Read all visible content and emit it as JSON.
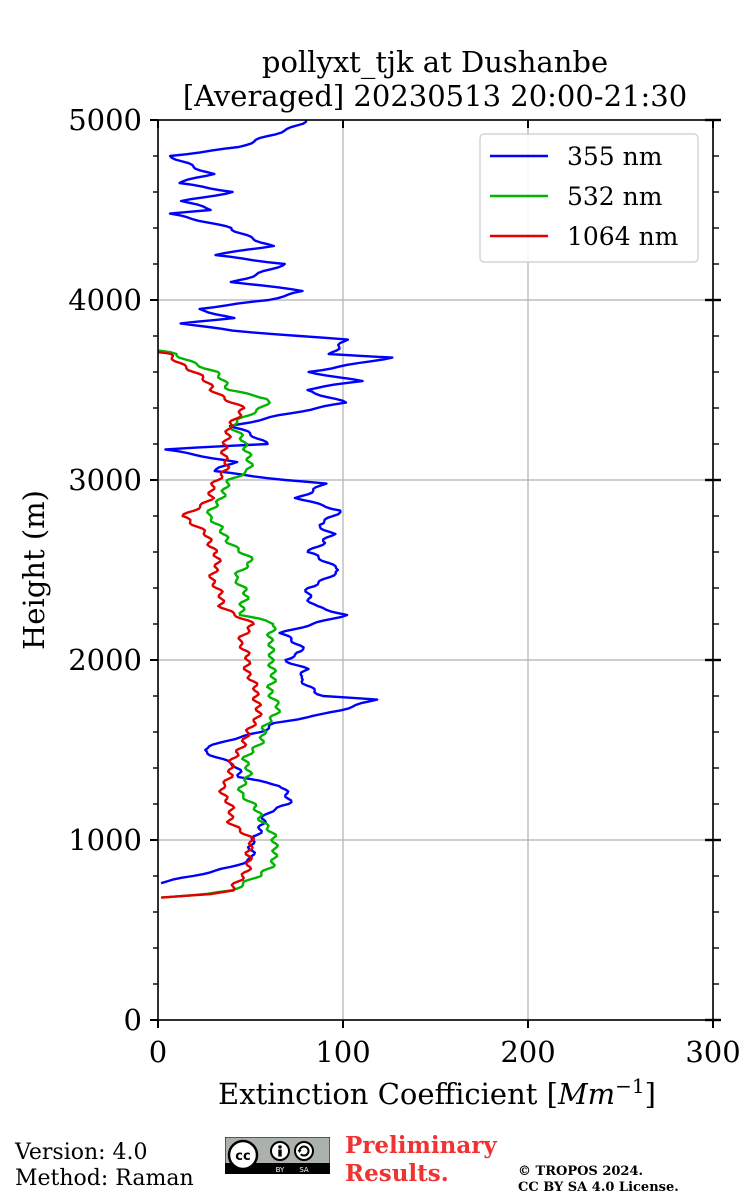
{
  "chart_data": {
    "type": "line",
    "title": "pollyxt_tjk at Dushanbe",
    "subtitle": "[Averaged] 20230513 20:00-21:30",
    "xlabel": "Extinction Coefficient [$Mm^{-1}$]",
    "xlabel_main": "Extinction Coefficient [",
    "xlabel_unit": "Mm",
    "xlabel_exp": "−1",
    "xlabel_close": "]",
    "ylabel": "Height (m)",
    "xlim": [
      0,
      300
    ],
    "ylim": [
      0,
      5000
    ],
    "xticks": [
      "0",
      "100",
      "200",
      "300"
    ],
    "yticks": [
      "0",
      "1000",
      "2000",
      "3000",
      "4000",
      "5000"
    ],
    "grid": true,
    "legend_position": "top-right",
    "series": [
      {
        "name": "355 nm",
        "color": "#0000ff",
        "points": [
          [
            0,
            760
          ],
          [
            20,
            800
          ],
          [
            40,
            850
          ],
          [
            50,
            900
          ],
          [
            52,
            1000
          ],
          [
            55,
            1080
          ],
          [
            60,
            1150
          ],
          [
            70,
            1200
          ],
          [
            68,
            1300
          ],
          [
            45,
            1350
          ],
          [
            40,
            1420
          ],
          [
            25,
            1500
          ],
          [
            35,
            1550
          ],
          [
            55,
            1600
          ],
          [
            65,
            1650
          ],
          [
            90,
            1700
          ],
          [
            117,
            1780
          ],
          [
            90,
            1800
          ],
          [
            75,
            1900
          ],
          [
            80,
            1950
          ],
          [
            70,
            2000
          ],
          [
            78,
            2050
          ],
          [
            68,
            2150
          ],
          [
            100,
            2250
          ],
          [
            85,
            2300
          ],
          [
            80,
            2400
          ],
          [
            100,
            2500
          ],
          [
            80,
            2600
          ],
          [
            90,
            2650
          ],
          [
            95,
            2700
          ],
          [
            85,
            2750
          ],
          [
            100,
            2830
          ],
          [
            75,
            2900
          ],
          [
            90,
            2980
          ],
          [
            70,
            3000
          ],
          [
            30,
            3050
          ],
          [
            40,
            3100
          ],
          [
            5,
            3170
          ],
          [
            60,
            3200
          ],
          [
            40,
            3300
          ],
          [
            100,
            3430
          ],
          [
            80,
            3500
          ],
          [
            110,
            3550
          ],
          [
            80,
            3600
          ],
          [
            127,
            3680
          ],
          [
            95,
            3700
          ],
          [
            100,
            3780
          ],
          [
            40,
            3830
          ],
          [
            15,
            3870
          ],
          [
            40,
            3900
          ],
          [
            20,
            3950
          ],
          [
            60,
            4000
          ],
          [
            80,
            4050
          ],
          [
            40,
            4100
          ],
          [
            70,
            4200
          ],
          [
            30,
            4250
          ],
          [
            60,
            4300
          ],
          [
            40,
            4400
          ],
          [
            5,
            4480
          ],
          [
            30,
            4500
          ],
          [
            15,
            4550
          ],
          [
            40,
            4600
          ],
          [
            10,
            4650
          ],
          [
            30,
            4700
          ],
          [
            5,
            4800
          ],
          [
            45,
            4850
          ],
          [
            70,
            4950
          ],
          [
            80,
            5000
          ]
        ]
      },
      {
        "name": "532 nm",
        "color": "#00b400",
        "points": [
          [
            0,
            680
          ],
          [
            25,
            700
          ],
          [
            40,
            720
          ],
          [
            55,
            800
          ],
          [
            60,
            850
          ],
          [
            65,
            950
          ],
          [
            60,
            1050
          ],
          [
            55,
            1150
          ],
          [
            45,
            1250
          ],
          [
            48,
            1350
          ],
          [
            48,
            1450
          ],
          [
            55,
            1550
          ],
          [
            60,
            1650
          ],
          [
            65,
            1750
          ],
          [
            60,
            1850
          ],
          [
            63,
            1950
          ],
          [
            60,
            2050
          ],
          [
            63,
            2200
          ],
          [
            45,
            2250
          ],
          [
            48,
            2350
          ],
          [
            42,
            2450
          ],
          [
            50,
            2550
          ],
          [
            45,
            2600
          ],
          [
            35,
            2700
          ],
          [
            28,
            2800
          ],
          [
            33,
            2900
          ],
          [
            40,
            3000
          ],
          [
            48,
            3050
          ],
          [
            50,
            3150
          ],
          [
            40,
            3300
          ],
          [
            55,
            3400
          ],
          [
            60,
            3450
          ],
          [
            40,
            3500
          ],
          [
            30,
            3600
          ],
          [
            10,
            3700
          ],
          [
            0,
            3720
          ]
        ]
      },
      {
        "name": "1064 nm",
        "color": "#e00000",
        "points": [
          [
            0,
            680
          ],
          [
            30,
            700
          ],
          [
            40,
            720
          ],
          [
            45,
            780
          ],
          [
            50,
            900
          ],
          [
            50,
            1000
          ],
          [
            40,
            1100
          ],
          [
            38,
            1200
          ],
          [
            35,
            1300
          ],
          [
            40,
            1400
          ],
          [
            43,
            1500
          ],
          [
            50,
            1600
          ],
          [
            55,
            1750
          ],
          [
            50,
            1900
          ],
          [
            48,
            2000
          ],
          [
            45,
            2100
          ],
          [
            50,
            2200
          ],
          [
            35,
            2300
          ],
          [
            30,
            2450
          ],
          [
            32,
            2600
          ],
          [
            25,
            2700
          ],
          [
            15,
            2800
          ],
          [
            28,
            2900
          ],
          [
            32,
            3000
          ],
          [
            38,
            3100
          ],
          [
            35,
            3200
          ],
          [
            40,
            3300
          ],
          [
            45,
            3400
          ],
          [
            30,
            3500
          ],
          [
            20,
            3600
          ],
          [
            5,
            3700
          ],
          [
            0,
            3710
          ]
        ]
      }
    ]
  },
  "footer": {
    "version": "Version: 4.0",
    "method": "Method: Raman",
    "preliminary_line1": "Preliminary",
    "preliminary_line2": "Results.",
    "copyright_line1": "© TROPOS 2024.",
    "copyright_line2": "CC BY SA 4.0 License.",
    "license_logo": "cc-by-sa-logo",
    "license_labels": [
      "BY",
      "SA"
    ]
  }
}
